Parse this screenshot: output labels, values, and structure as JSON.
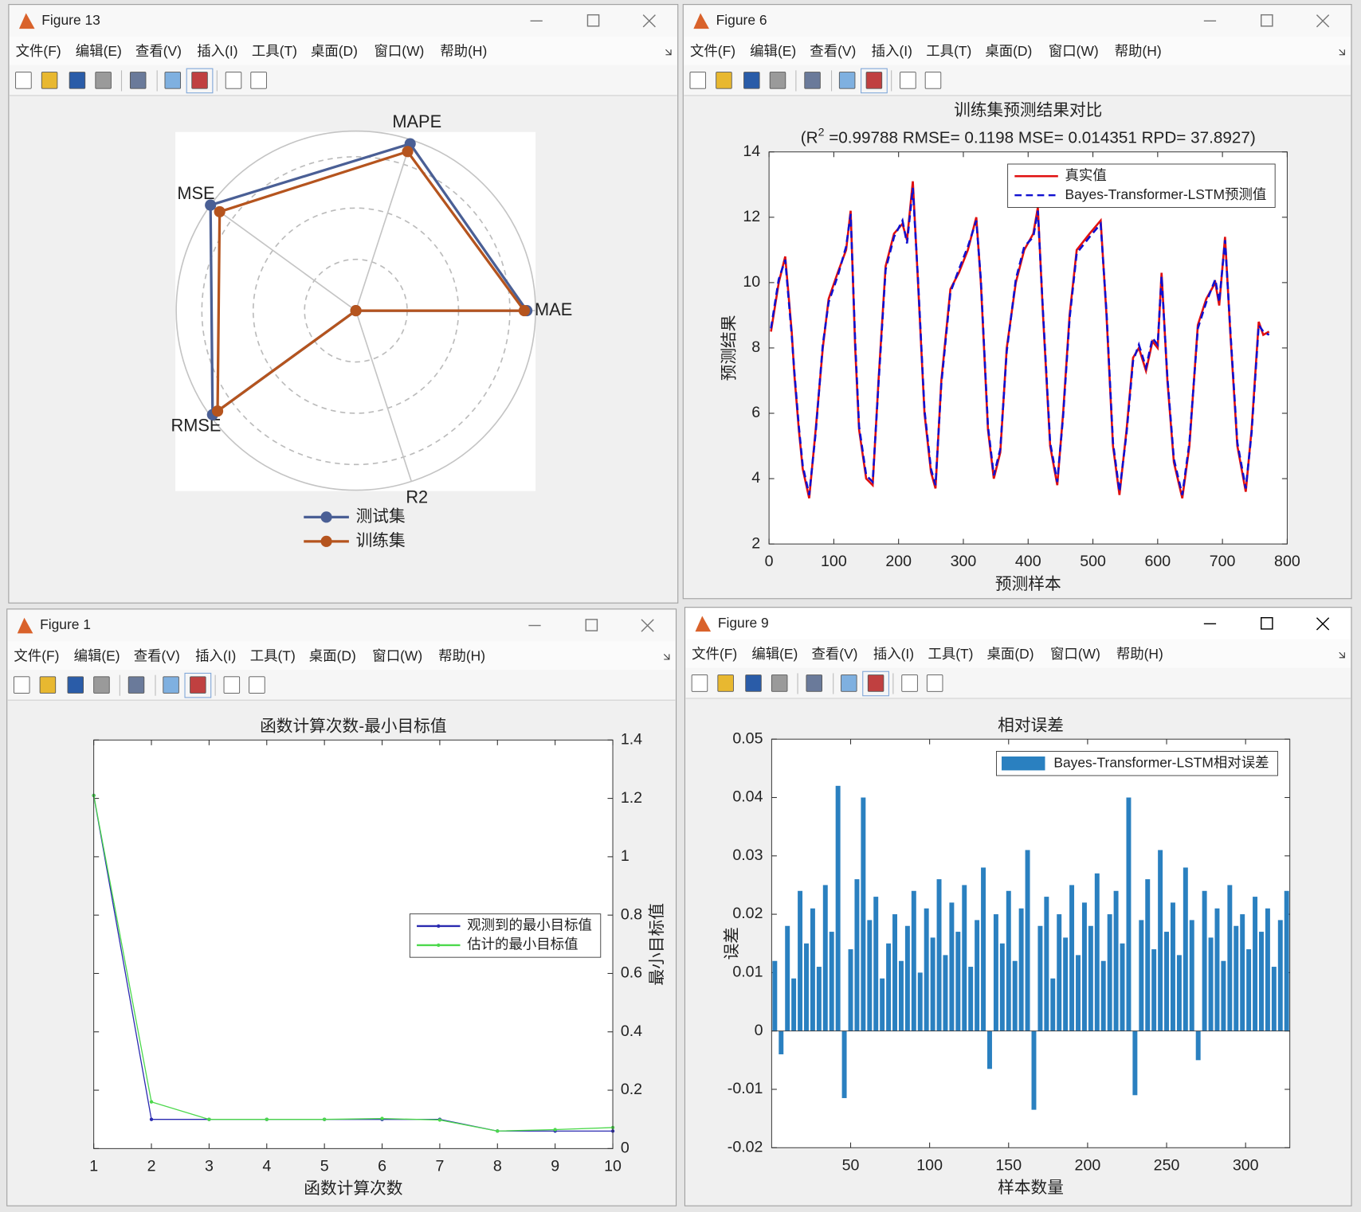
{
  "windows": [
    "Figure 13",
    "Figure 6",
    "Figure 1",
    "Figure 9"
  ],
  "menu": [
    "文件(F)",
    "编辑(E)",
    "查看(V)",
    "插入(I)",
    "工具(T)",
    "桌面(D)",
    "窗口(W)",
    "帮助(H)"
  ],
  "chart_data": [
    {
      "type": "radar",
      "categories": [
        "MAE",
        "MAPE",
        "MSE",
        "RMSE",
        "R2"
      ],
      "rlim": [
        0,
        3.5
      ],
      "rticks": [
        1,
        2,
        3
      ],
      "legend": "bottom",
      "series": [
        {
          "name": "测试集",
          "color": "#4a5f95",
          "values": [
            3.33,
            3.42,
            3.5,
            3.45,
            0
          ]
        },
        {
          "name": "训练集",
          "color": "#b5541e",
          "values": [
            3.28,
            3.26,
            3.28,
            3.33,
            0
          ]
        }
      ]
    },
    {
      "type": "line",
      "title": "训练集预测结果对比",
      "subtitle": [
        "(R",
        "2",
        " =0.99788 RMSE= 0.1198 MSE= 0.014351 RPD= 37.8927)"
      ],
      "x_label": "预测样本",
      "y_label": "预测结果",
      "xlim": [
        0,
        800
      ],
      "xticks": [
        0,
        100,
        200,
        300,
        400,
        500,
        600,
        700,
        800
      ],
      "ylim": [
        2,
        14
      ],
      "yticks": [
        2,
        4,
        6,
        8,
        10,
        12,
        14
      ],
      "legend": "upper right",
      "y_axis_side": "left",
      "x": [
        3,
        15,
        25,
        35,
        39,
        46,
        52,
        62,
        72,
        83,
        92,
        106,
        119,
        126,
        133,
        139,
        150,
        160,
        169,
        180,
        193,
        206,
        213,
        222,
        230,
        240,
        250,
        257,
        266,
        280,
        293,
        307,
        320,
        327,
        338,
        347,
        357,
        367,
        381,
        394,
        408,
        415,
        423,
        434,
        445,
        454,
        464,
        475,
        495,
        512,
        521,
        531,
        541,
        552,
        562,
        571,
        582,
        592,
        600,
        606,
        615,
        625,
        638,
        649,
        662,
        675,
        689,
        695,
        704,
        712,
        723,
        736,
        745,
        756,
        763,
        772
      ],
      "series": [
        {
          "name": "真实值",
          "color": "#e01010",
          "line_style": "solid",
          "values": [
            8.5,
            10,
            10.8,
            8.5,
            7.2,
            5.5,
            4.3,
            3.4,
            5.5,
            8,
            9.5,
            10.3,
            11,
            12.2,
            8,
            5.5,
            4,
            3.8,
            7,
            10.5,
            11.5,
            11.8,
            11.3,
            13.1,
            10,
            6,
            4.2,
            3.7,
            7,
            9.8,
            10.3,
            11,
            12,
            10,
            5.5,
            4,
            4.8,
            8,
            10,
            11,
            11.5,
            12.3,
            9,
            5,
            3.8,
            6,
            9,
            11,
            11.5,
            11.9,
            9,
            5,
            3.5,
            5.5,
            7.7,
            8,
            7.3,
            8.2,
            8,
            10.3,
            7,
            4.5,
            3.4,
            5,
            8.7,
            9.5,
            10,
            9.3,
            11.4,
            8.5,
            5,
            3.6,
            5.5,
            8.8,
            8.4,
            8.5
          ]
        },
        {
          "name": "Bayes-Transformer-LSTM预测值",
          "color": "#1010d0",
          "line_style": "dashed",
          "values": [
            8.6,
            10.1,
            10.7,
            8.4,
            7.3,
            5.6,
            4.4,
            3.5,
            5.4,
            8.1,
            9.4,
            10.2,
            11.1,
            12.1,
            8.2,
            5.6,
            4.1,
            3.9,
            6.9,
            10.4,
            11.4,
            11.9,
            11.2,
            12.9,
            10.1,
            6.1,
            4.3,
            3.8,
            6.9,
            9.7,
            10.4,
            11.1,
            11.9,
            10.1,
            5.6,
            4.1,
            4.9,
            7.9,
            10.1,
            11.1,
            11.4,
            12.2,
            9.1,
            5.1,
            3.9,
            5.9,
            8.9,
            10.9,
            11.4,
            11.8,
            9.1,
            5.1,
            3.6,
            5.4,
            7.6,
            8.1,
            7.4,
            8.3,
            8.1,
            10.2,
            7.1,
            4.6,
            3.5,
            5.1,
            8.6,
            9.4,
            10.1,
            9.4,
            11.3,
            8.6,
            5.1,
            3.7,
            5.4,
            8.7,
            8.5,
            8.4
          ]
        }
      ]
    },
    {
      "type": "line",
      "title": "函数计算次数-最小目标值",
      "x_label": "函数计算次数",
      "y_label": "最小目标值",
      "xlim": [
        1,
        10
      ],
      "xticks": [
        1,
        2,
        3,
        4,
        5,
        6,
        7,
        8,
        9,
        10
      ],
      "ylim": [
        0,
        1.4
      ],
      "yticks": [
        0,
        0.2,
        0.4,
        0.6,
        0.8,
        1,
        1.2,
        1.4
      ],
      "legend": "right",
      "y_axis_side": "right",
      "marker": "dot",
      "x": [
        1,
        2,
        3,
        4,
        5,
        6,
        7,
        8,
        9,
        10
      ],
      "series": [
        {
          "name": "观测到的最小目标值",
          "color": "#2a2ab0",
          "line_style": "solid",
          "values": [
            1.21,
            0.1,
            0.1,
            0.1,
            0.1,
            0.1,
            0.1,
            0.06,
            0.06,
            0.06
          ]
        },
        {
          "name": "估计的最小目标值",
          "color": "#4cd84c",
          "line_style": "solid",
          "values": [
            1.21,
            0.16,
            0.1,
            0.1,
            0.1,
            0.103,
            0.098,
            0.06,
            0.065,
            0.072
          ]
        }
      ]
    },
    {
      "type": "bar",
      "title": "相对误差",
      "x_label": "样本数量",
      "y_label": "误差",
      "xlim": [
        0,
        328
      ],
      "xticks": [
        50,
        100,
        150,
        200,
        250,
        300
      ],
      "ylim": [
        -0.02,
        0.05
      ],
      "yticks": [
        -0.02,
        -0.01,
        0,
        0.01,
        0.02,
        0.03,
        0.04,
        0.05
      ],
      "legend": "upper right",
      "y_axis_side": "left",
      "x": [
        2,
        6,
        10,
        14,
        18,
        22,
        26,
        30,
        34,
        38,
        42,
        46,
        50,
        54,
        58,
        62,
        66,
        70,
        74,
        78,
        82,
        86,
        90,
        94,
        98,
        102,
        106,
        110,
        114,
        118,
        122,
        126,
        130,
        134,
        138,
        142,
        146,
        150,
        154,
        158,
        162,
        166,
        170,
        174,
        178,
        182,
        186,
        190,
        194,
        198,
        202,
        206,
        210,
        214,
        218,
        222,
        226,
        230,
        234,
        238,
        242,
        246,
        250,
        254,
        258,
        262,
        266,
        270,
        274,
        278,
        282,
        286,
        290,
        294,
        298,
        302,
        306,
        310,
        314,
        318,
        322,
        326
      ],
      "series": [
        {
          "name": "Bayes-Transformer-LSTM相对误差",
          "color": "#2a80c0",
          "values": [
            0.012,
            -0.004,
            0.018,
            0.009,
            0.024,
            0.015,
            0.021,
            0.011,
            0.025,
            0.017,
            0.042,
            -0.0115,
            0.014,
            0.026,
            0.04,
            0.019,
            0.023,
            0.009,
            0.015,
            0.02,
            0.012,
            0.018,
            0.024,
            0.01,
            0.021,
            0.016,
            0.026,
            0.013,
            0.022,
            0.017,
            0.025,
            0.011,
            0.019,
            0.028,
            -0.0065,
            0.02,
            0.015,
            0.024,
            0.012,
            0.021,
            0.031,
            -0.0135,
            0.018,
            0.023,
            0.009,
            0.02,
            0.016,
            0.025,
            0.013,
            0.022,
            0.018,
            0.027,
            0.012,
            0.02,
            0.024,
            0.015,
            0.04,
            -0.011,
            0.019,
            0.026,
            0.014,
            0.031,
            0.017,
            0.022,
            0.013,
            0.028,
            0.019,
            -0.005,
            0.024,
            0.016,
            0.021,
            0.012,
            0.025,
            0.018,
            0.02,
            0.014,
            0.023,
            0.017,
            0.021,
            0.011,
            0.019,
            0.024
          ]
        }
      ]
    }
  ]
}
